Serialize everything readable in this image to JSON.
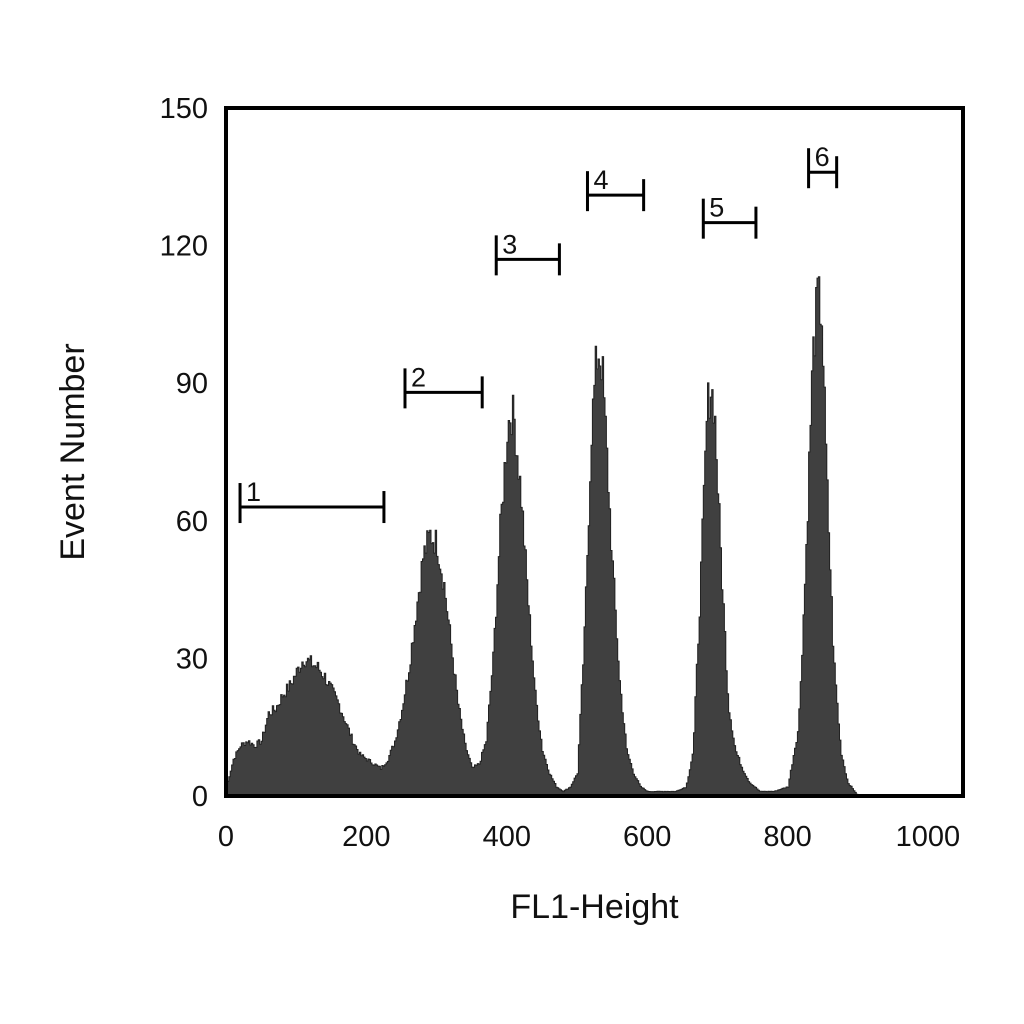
{
  "chart_data": {
    "type": "area",
    "xlabel": "FL1-Height",
    "ylabel": "Event Number",
    "xlim": [
      0,
      1050
    ],
    "ylim": [
      0,
      150
    ],
    "x_ticks": [
      0,
      200,
      400,
      600,
      800,
      1000
    ],
    "y_ticks": [
      0,
      30,
      60,
      90,
      120,
      150
    ],
    "fill_color": "#404040",
    "grid": false,
    "peaks": [
      {
        "center": 120,
        "height": 29,
        "width": 48
      },
      {
        "center": 290,
        "height": 57,
        "width": 22
      },
      {
        "center": 405,
        "height": 84,
        "width": 15
      },
      {
        "center": 530,
        "height": 97,
        "width": 14
      },
      {
        "center": 690,
        "height": 89,
        "width": 13
      },
      {
        "center": 842,
        "height": 109,
        "width": 11
      }
    ],
    "series": [
      {
        "values": [
          [
            0,
            2
          ],
          [
            10,
            8
          ],
          [
            20,
            11
          ],
          [
            30,
            12
          ],
          [
            40,
            11
          ],
          [
            50,
            12
          ],
          [
            60,
            18
          ],
          [
            70,
            19
          ],
          [
            80,
            22
          ],
          [
            90,
            24
          ],
          [
            100,
            27
          ],
          [
            110,
            30
          ],
          [
            120,
            29
          ],
          [
            130,
            28
          ],
          [
            140,
            26
          ],
          [
            150,
            23
          ],
          [
            160,
            20
          ],
          [
            170,
            16
          ],
          [
            180,
            12
          ],
          [
            190,
            9
          ],
          [
            200,
            8
          ],
          [
            210,
            7
          ],
          [
            220,
            6
          ],
          [
            230,
            8
          ],
          [
            240,
            12
          ],
          [
            250,
            19
          ],
          [
            260,
            28
          ],
          [
            270,
            40
          ],
          [
            280,
            52
          ],
          [
            290,
            57
          ],
          [
            300,
            55
          ],
          [
            310,
            46
          ],
          [
            320,
            33
          ],
          [
            330,
            20
          ],
          [
            340,
            11
          ],
          [
            350,
            6
          ],
          [
            360,
            7
          ],
          [
            370,
            12
          ],
          [
            380,
            30
          ],
          [
            390,
            58
          ],
          [
            400,
            80
          ],
          [
            405,
            84
          ],
          [
            410,
            82
          ],
          [
            420,
            65
          ],
          [
            430,
            42
          ],
          [
            440,
            22
          ],
          [
            450,
            10
          ],
          [
            460,
            5
          ],
          [
            470,
            2
          ],
          [
            480,
            1
          ],
          [
            490,
            2
          ],
          [
            500,
            5
          ],
          [
            510,
            35
          ],
          [
            520,
            80
          ],
          [
            527,
            95
          ],
          [
            530,
            97
          ],
          [
            535,
            94
          ],
          [
            540,
            80
          ],
          [
            550,
            50
          ],
          [
            560,
            25
          ],
          [
            570,
            10
          ],
          [
            580,
            5
          ],
          [
            590,
            2
          ],
          [
            600,
            1
          ],
          [
            620,
            1
          ],
          [
            640,
            1
          ],
          [
            655,
            2
          ],
          [
            665,
            10
          ],
          [
            675,
            45
          ],
          [
            685,
            85
          ],
          [
            690,
            89
          ],
          [
            695,
            85
          ],
          [
            705,
            50
          ],
          [
            715,
            20
          ],
          [
            725,
            10
          ],
          [
            735,
            6
          ],
          [
            745,
            3
          ],
          [
            760,
            1
          ],
          [
            780,
            1
          ],
          [
            800,
            2
          ],
          [
            815,
            15
          ],
          [
            825,
            50
          ],
          [
            835,
            95
          ],
          [
            842,
            109
          ],
          [
            848,
            105
          ],
          [
            855,
            70
          ],
          [
            865,
            30
          ],
          [
            875,
            10
          ],
          [
            885,
            3
          ],
          [
            900,
            0
          ]
        ]
      }
    ],
    "gates": [
      {
        "label": "1",
        "start": 20,
        "end": 225,
        "level": 63
      },
      {
        "label": "2",
        "start": 255,
        "end": 365,
        "level": 88
      },
      {
        "label": "3",
        "start": 385,
        "end": 475,
        "level": 117
      },
      {
        "label": "4",
        "start": 515,
        "end": 595,
        "level": 131
      },
      {
        "label": "5",
        "start": 680,
        "end": 755,
        "level": 125
      },
      {
        "label": "6",
        "start": 830,
        "end": 870,
        "level": 136
      }
    ]
  }
}
